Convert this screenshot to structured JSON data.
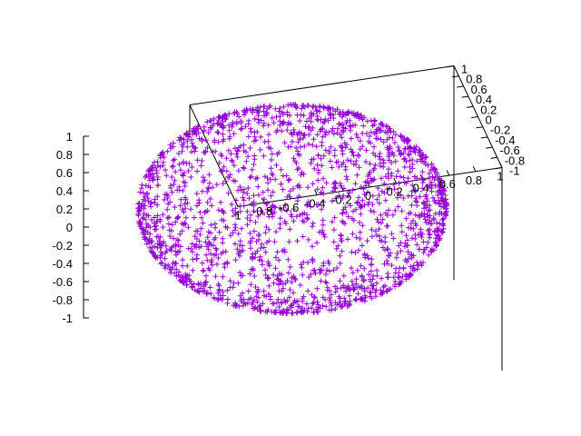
{
  "chart_data": {
    "type": "scatter",
    "projection": "3d",
    "title": "",
    "xlabel": "",
    "ylabel": "",
    "zlabel": "",
    "xlim": [
      -1,
      1
    ],
    "ylim": [
      -1,
      1
    ],
    "zlim": [
      -1,
      1
    ],
    "grid": false,
    "legend": "none",
    "marker": "plus",
    "x_ticks": [
      "-1",
      "-0.8",
      "-0.6",
      "-0.4",
      "-0.2",
      "0",
      "0.2",
      "0.4",
      "0.6",
      "0.8",
      "1"
    ],
    "y_ticks": [
      "-1",
      "-0.8",
      "-0.6",
      "-0.4",
      "-0.2",
      "0",
      "0.2",
      "0.4",
      "0.6",
      "0.8",
      "1"
    ],
    "z_ticks": [
      "-1",
      "-0.8",
      "-0.6",
      "-0.4",
      "-0.2",
      "0",
      "0.2",
      "0.4",
      "0.6",
      "0.8",
      "1"
    ],
    "series": [
      {
        "color": "#9400d3",
        "description_points": "Points uniformly distributed on the surface of the unit sphere x^2 + y^2 + z^2 = 1",
        "count": 2000
      }
    ]
  }
}
